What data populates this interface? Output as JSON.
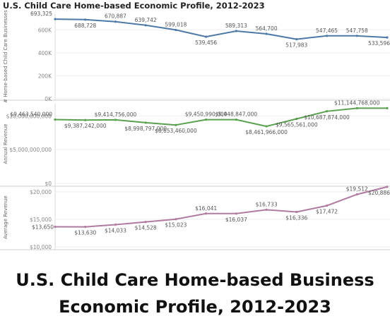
{
  "page": {
    "title": "U.S. Child Care Home-based Economic Profile, 2012-2023",
    "caption_line1": "U.S. Child Care Home-based Business",
    "caption_line2": "Economic Profile, 2012-2023"
  },
  "chart_data": [
    {
      "type": "line",
      "ylabel": "# Home-based Child Care Businesses",
      "ylim": [
        0,
        700000
      ],
      "y_ticks": [
        0,
        200000,
        400000,
        600000
      ],
      "y_tick_labels": [
        "0K",
        "200K",
        "400K",
        "600K"
      ],
      "color": "#4e79a7",
      "x": [
        2012,
        2013,
        2014,
        2015,
        2016,
        2017,
        2018,
        2019,
        2020,
        2021,
        2022,
        2023
      ],
      "values": [
        693325,
        688728,
        670887,
        639742,
        599018,
        539456,
        589313,
        564700,
        517983,
        547465,
        547758,
        533596
      ],
      "labels": [
        "693,325",
        "688,728",
        "670,887",
        "639,742",
        "599,018",
        "539,456",
        "589,313",
        "564,700",
        "517,983",
        "547,465",
        "547,758",
        "533,596"
      ],
      "label_pos": [
        "above",
        "below",
        "above",
        "above",
        "above",
        "below",
        "above",
        "above",
        "below",
        "above",
        "above",
        "below"
      ]
    },
    {
      "type": "line",
      "ylabel": "Annual Revenue",
      "ylim": [
        0,
        11500000000
      ],
      "y_ticks": [
        0,
        5000000000,
        10000000000
      ],
      "y_tick_labels": [
        "$0",
        "$5,000,000,000",
        "$10,000,000,000"
      ],
      "color": "#59a14f",
      "x": [
        2012,
        2013,
        2014,
        2015,
        2016,
        2017,
        2018,
        2019,
        2020,
        2021,
        2022,
        2023
      ],
      "values": [
        9463540000,
        9387242000,
        9414756000,
        8998797000,
        8653460000,
        9450990000,
        9448847000,
        8461966000,
        9565561000,
        10687874000,
        11144768000,
        11144768000
      ],
      "labels": [
        "$9,463,540,000",
        "$9,387,242,000",
        "$9,414,756,000",
        "$8,998,797,000",
        "$8,653,460,000",
        "$9,450,990,000",
        "$9,448,847,000",
        "$8,461,966,000",
        "$9,565,561,000",
        "$10,687,874,000",
        "$11,144,768,000",
        ""
      ],
      "label_pos": [
        "above",
        "below",
        "above",
        "below",
        "below",
        "above",
        "above",
        "below",
        "below",
        "below",
        "above",
        "none"
      ]
    },
    {
      "type": "line",
      "ylabel": "Average Revenue",
      "ylim": [
        10000,
        21000
      ],
      "y_ticks": [
        10000,
        15000,
        20000
      ],
      "y_tick_labels": [
        "$10,000",
        "$15,000",
        "$20,000"
      ],
      "color": "#b07aa1",
      "x": [
        2012,
        2013,
        2014,
        2015,
        2016,
        2017,
        2018,
        2019,
        2020,
        2021,
        2022,
        2023
      ],
      "values": [
        13650,
        13630,
        14033,
        14528,
        15023,
        16041,
        16037,
        16733,
        16336,
        17472,
        19512,
        20886
      ],
      "labels": [
        "$13,650",
        "$13,630",
        "$14,033",
        "$14,528",
        "$15,023",
        "$16,041",
        "$16,037",
        "$16,733",
        "$16,336",
        "$17,472",
        "$19,512",
        "$20,886"
      ],
      "label_pos": [
        "left",
        "below",
        "below",
        "below",
        "below",
        "above",
        "below",
        "above",
        "below",
        "below",
        "above",
        "below"
      ]
    }
  ]
}
